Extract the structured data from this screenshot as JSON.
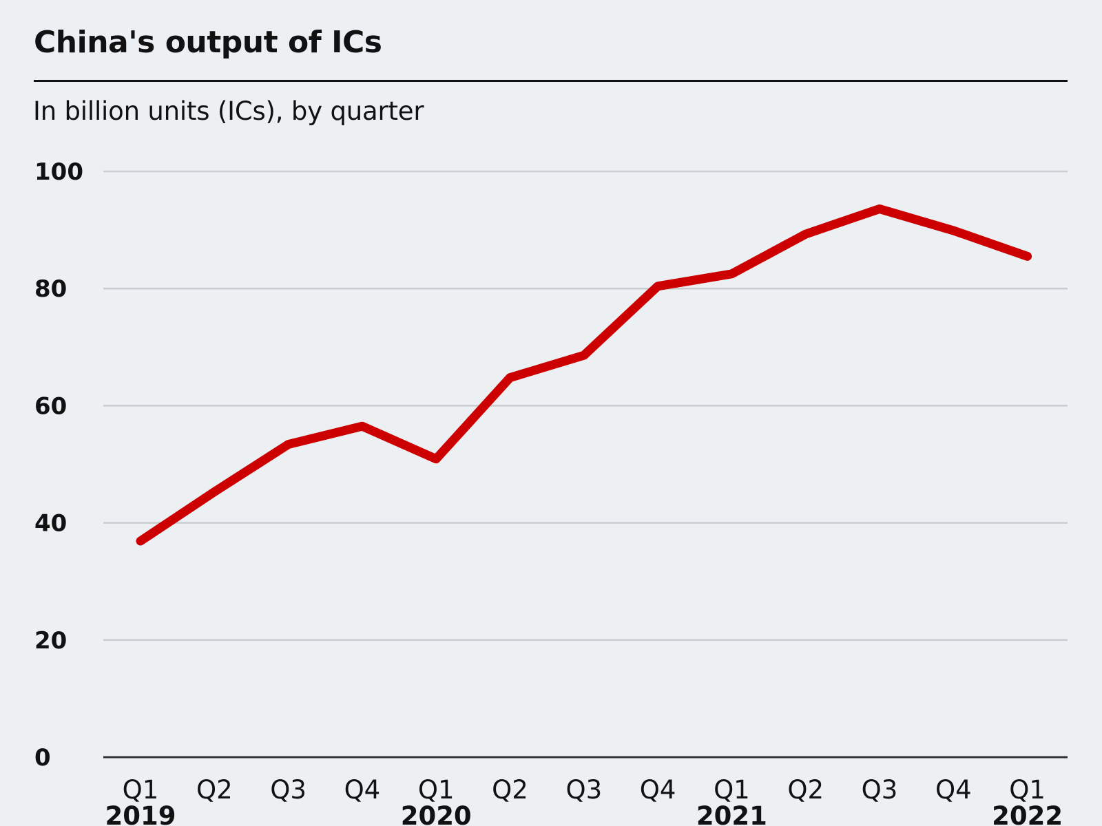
{
  "header": {
    "title": "China's output of ICs",
    "subtitle": "In billion units (ICs), by quarter"
  },
  "colors": {
    "background": "#ecf0f3",
    "line": "#cc0000",
    "gridline": "#c9cdd1",
    "baseline": "#333333"
  },
  "chart_data": {
    "type": "line",
    "title": "China's output of ICs",
    "subtitle": "In billion units (ICs), by quarter",
    "xlabel": "",
    "ylabel": "",
    "ylim": [
      0,
      100
    ],
    "yticks": [
      0,
      20,
      40,
      60,
      80,
      100
    ],
    "grid": true,
    "categories": [
      "Q1",
      "Q2",
      "Q3",
      "Q4",
      "Q1",
      "Q2",
      "Q3",
      "Q4",
      "Q1",
      "Q2",
      "Q3",
      "Q4",
      "Q1"
    ],
    "years": [
      {
        "label": "2019",
        "index": 0
      },
      {
        "label": "2020",
        "index": 4
      },
      {
        "label": "2021",
        "index": 8
      },
      {
        "label": "2022",
        "index": 12
      }
    ],
    "series": [
      {
        "values": [
          36.9,
          45.3,
          53.4,
          56.5,
          50.9,
          64.8,
          68.6,
          80.4,
          82.5,
          89.3,
          93.6,
          89.9,
          85.5
        ]
      }
    ]
  }
}
